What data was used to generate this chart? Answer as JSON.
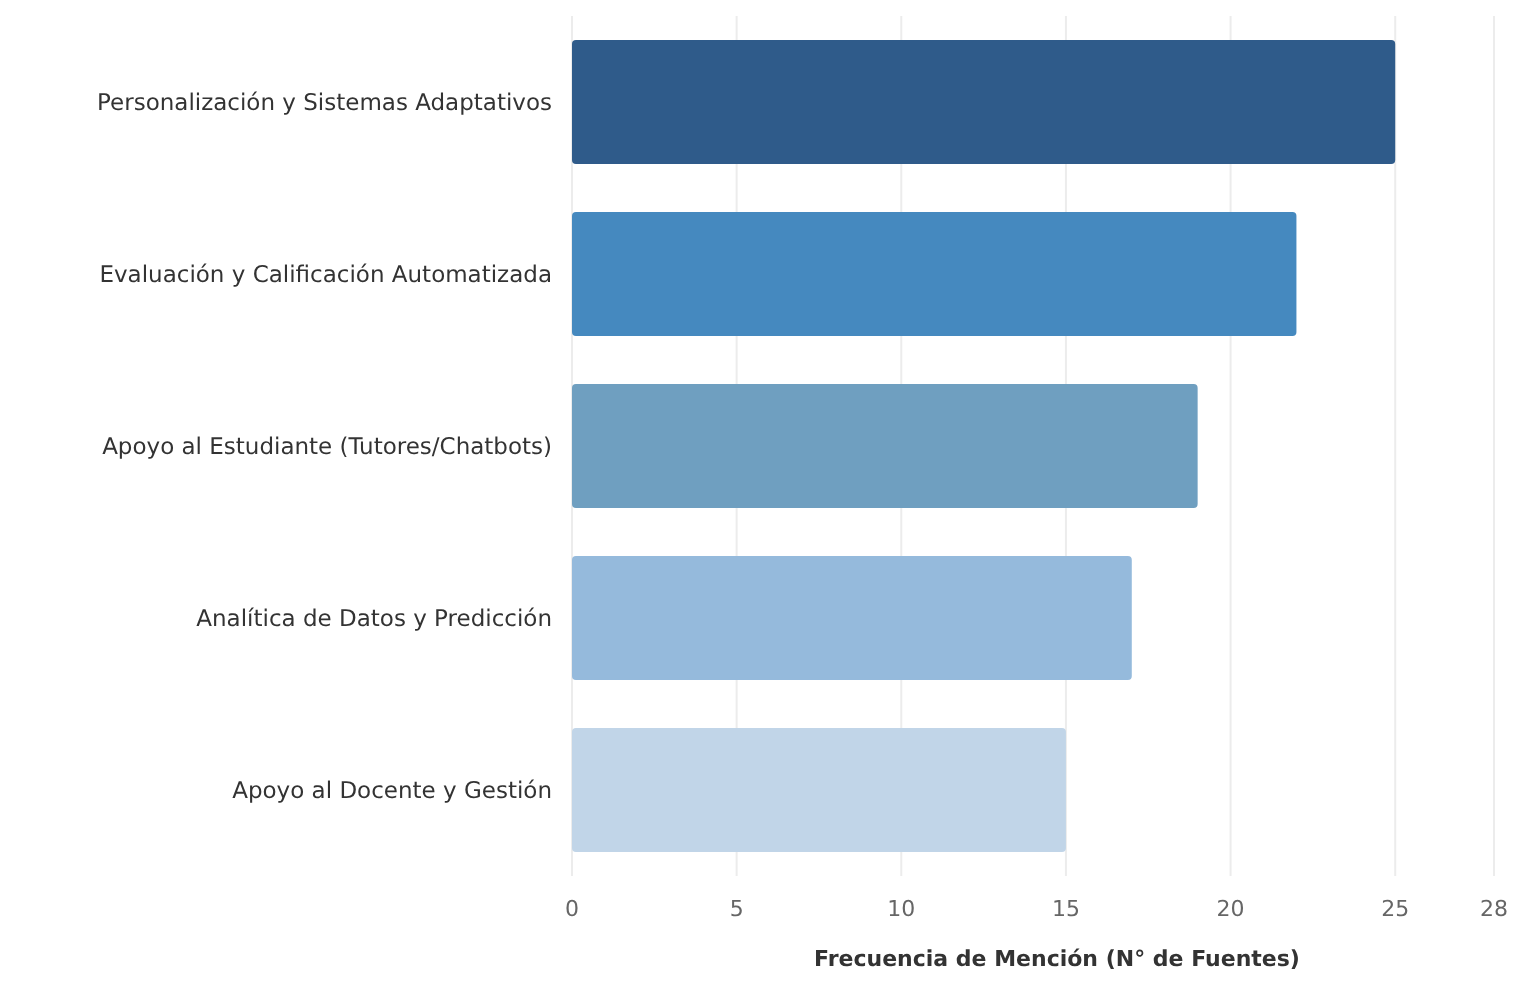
{
  "chart_data": {
    "type": "bar",
    "orientation": "horizontal",
    "xlabel": "Frecuencia de Mención (N° de Fuentes)",
    "categories": [
      "Personalización y Sistemas Adaptativos",
      "Evaluación y Calificación Automatizada",
      "Apoyo al Estudiante (Tutores/Chatbots)",
      "Analítica de Datos y Predicción",
      "Apoyo al Docente y Gestión"
    ],
    "values": [
      25,
      22,
      19,
      17,
      15
    ],
    "colors": [
      "#2f5b8a",
      "#4589bf",
      "#6f9fc0",
      "#95badc",
      "#c1d5e8"
    ],
    "xlim": [
      0,
      28
    ],
    "xticks": [
      0,
      5,
      10,
      15,
      20,
      25,
      28
    ],
    "grid": "x"
  }
}
